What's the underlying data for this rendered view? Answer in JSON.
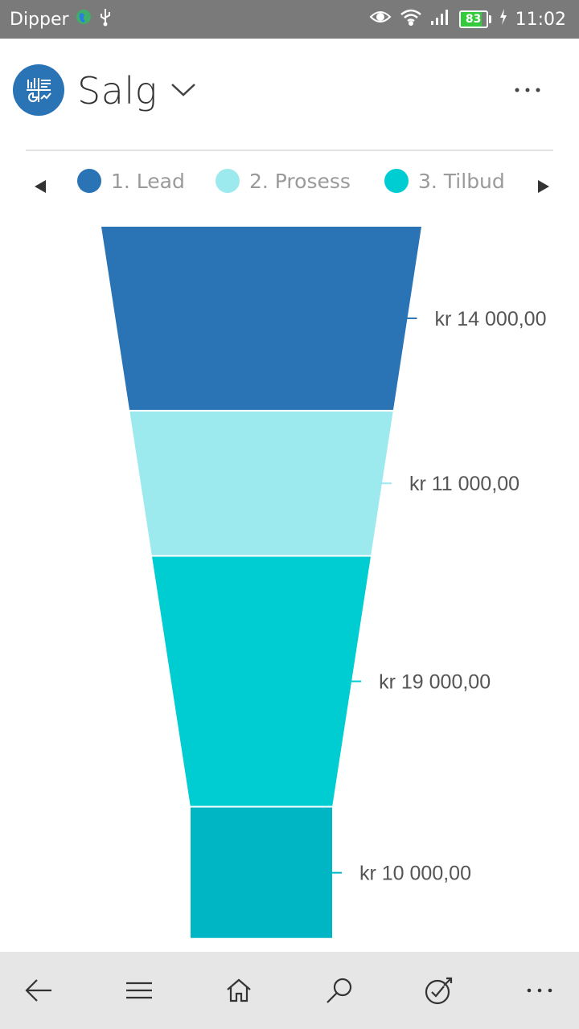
{
  "status_bar": {
    "carrier": "Dipper",
    "battery_level": "83",
    "battery_fraction": 0.83,
    "time": "11:02",
    "icons": [
      "globe-icon",
      "usb-icon",
      "eye-icon",
      "wifi-icon",
      "signal-icon",
      "battery-icon",
      "charging-icon"
    ]
  },
  "header": {
    "title": "Salg",
    "app_icon": "funnel-report-icon",
    "dropdown_icon": "chevron-down-icon",
    "more_icon": "more-horizontal-icon"
  },
  "legend": {
    "prev_icon": "triangle-left-icon",
    "next_icon": "triangle-right-icon",
    "items": [
      {
        "label": "1. Lead",
        "color": "#2a73b5"
      },
      {
        "label": "2. Prosess",
        "color": "#9deaee"
      },
      {
        "label": "3. Tilbud",
        "color": "#00cdd2"
      }
    ]
  },
  "chart_data": {
    "type": "funnel",
    "stages": [
      {
        "value": 14000,
        "label": "kr 14 000,00",
        "color": "#2a73b5"
      },
      {
        "value": 11000,
        "label": "kr 11 000,00",
        "color": "#9deaee"
      },
      {
        "value": 19000,
        "label": "kr 19 000,00",
        "color": "#00cdd2"
      },
      {
        "value": 10000,
        "label": "kr 10 000,00",
        "color": "#00b5c4"
      }
    ]
  },
  "bottom_nav": {
    "items": [
      {
        "name": "back-button",
        "icon": "arrow-left-icon"
      },
      {
        "name": "menu-button",
        "icon": "hamburger-icon"
      },
      {
        "name": "home-button",
        "icon": "home-icon"
      },
      {
        "name": "search-button",
        "icon": "search-icon"
      },
      {
        "name": "activities-button",
        "icon": "target-check-icon"
      },
      {
        "name": "more-nav-button",
        "icon": "more-horizontal-icon"
      }
    ]
  }
}
